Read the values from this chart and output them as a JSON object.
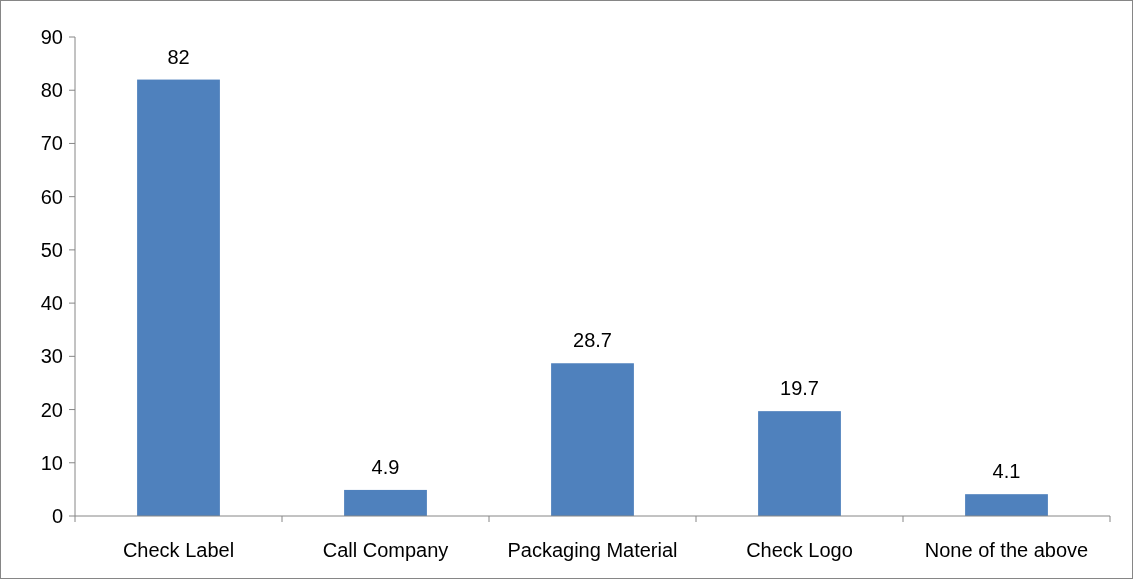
{
  "chart_data": {
    "type": "bar",
    "categories": [
      "Check Label",
      "Call Company",
      "Packaging Material",
      "Check Logo",
      "None of the above"
    ],
    "values": [
      82,
      4.9,
      28.7,
      19.7,
      4.1
    ],
    "color": "#4f81bd",
    "data_labels": true,
    "ylim": [
      0,
      90
    ],
    "yticks": [
      0,
      10,
      20,
      30,
      40,
      50,
      60,
      70,
      80,
      90
    ]
  }
}
